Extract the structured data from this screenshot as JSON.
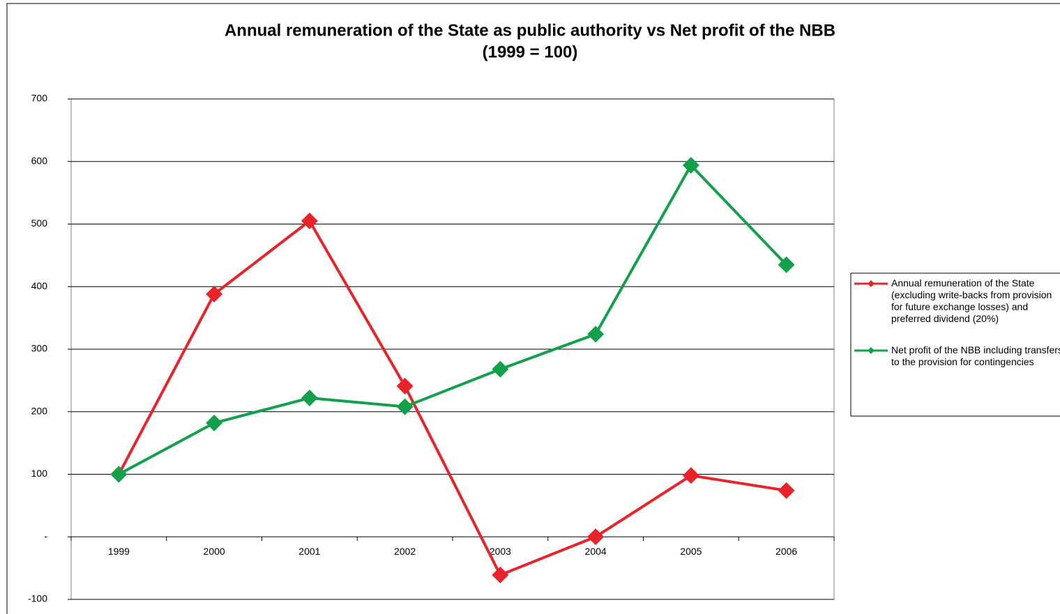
{
  "chart_data": {
    "type": "line",
    "title": "Annual remuneration of the State as public authority vs Net profit of the NBB",
    "subtitle": "(1999 = 100)",
    "categories": [
      "1999",
      "2000",
      "2001",
      "2002",
      "2003",
      "2004",
      "2005",
      "2006"
    ],
    "series": [
      {
        "name": "Annual remuneration of the State (excluding write-backs from provision for future exchange losses) and preferred dividend (20%)",
        "color": "#e8232a",
        "values": [
          100,
          388,
          505,
          241,
          -61,
          0,
          98,
          74
        ]
      },
      {
        "name": "Net profit of the NBB including transfers to the provision for contingencies",
        "color": "#13a04a",
        "values": [
          100,
          182,
          222,
          208,
          268,
          324,
          594,
          435
        ]
      }
    ],
    "ylim": [
      -100,
      700
    ],
    "yticks": [
      -100,
      {
        "value": 0,
        "label": "-"
      },
      100,
      200,
      300,
      400,
      500,
      600,
      700
    ],
    "grid": true,
    "legend": "right"
  }
}
